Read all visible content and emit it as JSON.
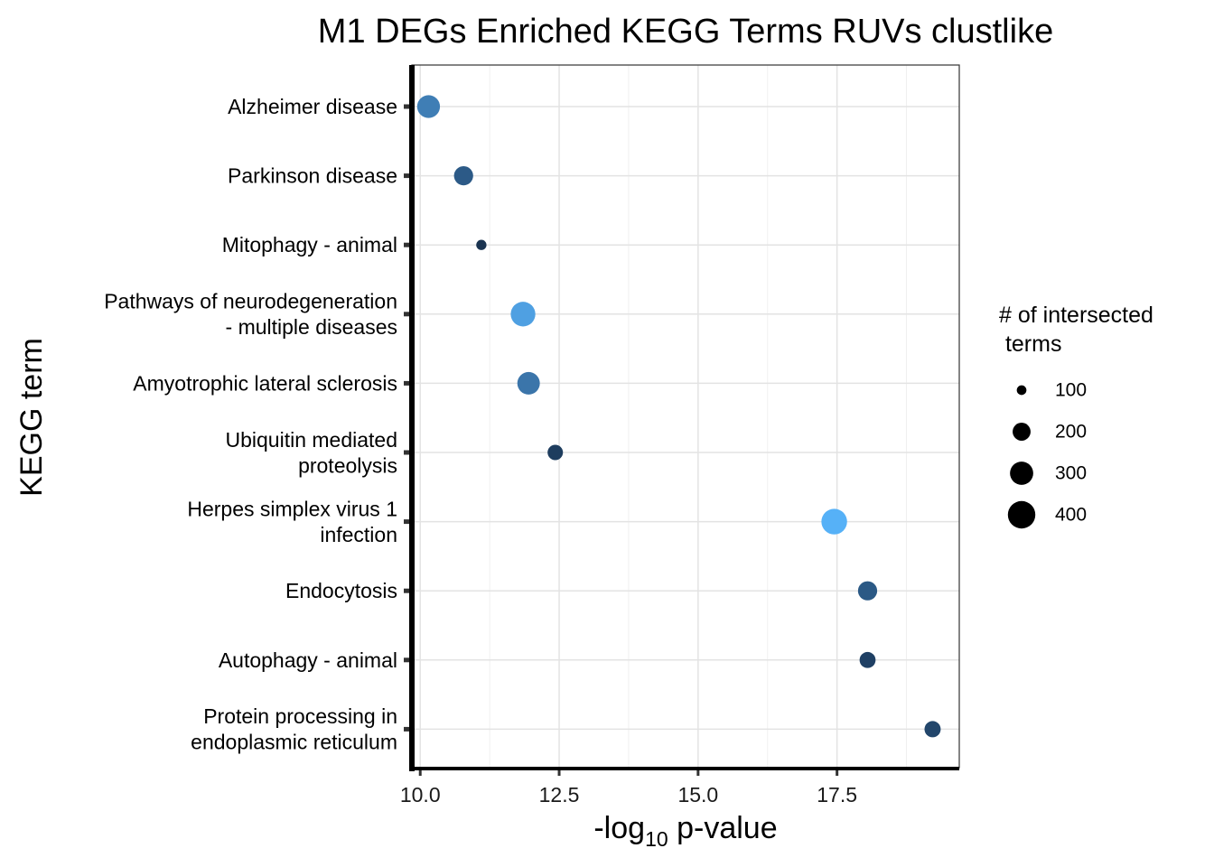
{
  "chart_data": {
    "type": "scatter",
    "title": "M1 DEGs Enriched KEGG Terms RUVs clustlike",
    "xlabel": {
      "prefix": "-log",
      "subscript": "10",
      "suffix": " p-value"
    },
    "ylabel": "KEGG term",
    "xlim": [
      9.85,
      19.7
    ],
    "x_ticks": [
      10.0,
      12.5,
      15.0,
      17.5
    ],
    "x_tick_labels": [
      "10.0",
      "12.5",
      "15.0",
      "17.5"
    ],
    "grid": true,
    "legend": {
      "placement": "right",
      "title_lines": [
        "# of intersected",
        " terms"
      ],
      "entries": [
        {
          "label": "100",
          "value": 100
        },
        {
          "label": "200",
          "value": 200
        },
        {
          "label": "300",
          "value": 300
        },
        {
          "label": "400",
          "value": 400
        }
      ]
    },
    "points": [
      {
        "term_lines": [
          "Alzheimer disease"
        ],
        "x": 10.15,
        "size": 370,
        "color": "#3f7eb5"
      },
      {
        "term_lines": [
          "Parkinson disease"
        ],
        "x": 10.78,
        "size": 250,
        "color": "#2c5a87"
      },
      {
        "term_lines": [
          "Mitophagy - animal"
        ],
        "x": 11.1,
        "size": 55,
        "color": "#1a3350"
      },
      {
        "term_lines": [
          "Pathways of neurodegeneration",
          "- multiple diseases"
        ],
        "x": 11.85,
        "size": 440,
        "color": "#4fa0e2"
      },
      {
        "term_lines": [
          "Amyotrophic lateral sclerosis"
        ],
        "x": 11.95,
        "size": 360,
        "color": "#3b75aa"
      },
      {
        "term_lines": [
          "Ubiquitin mediated",
          "proteolysis"
        ],
        "x": 12.43,
        "size": 150,
        "color": "#1e3d5e"
      },
      {
        "term_lines": [
          "Herpes simplex virus 1",
          "infection"
        ],
        "x": 17.45,
        "size": 480,
        "color": "#56b1f7"
      },
      {
        "term_lines": [
          "Endocytosis"
        ],
        "x": 18.05,
        "size": 250,
        "color": "#2b5985"
      },
      {
        "term_lines": [
          "Autophagy - animal"
        ],
        "x": 18.05,
        "size": 165,
        "color": "#1f4064"
      },
      {
        "term_lines": [
          "Protein processing in",
          "endoplasmic reticulum"
        ],
        "x": 19.22,
        "size": 170,
        "color": "#22466b"
      }
    ]
  }
}
